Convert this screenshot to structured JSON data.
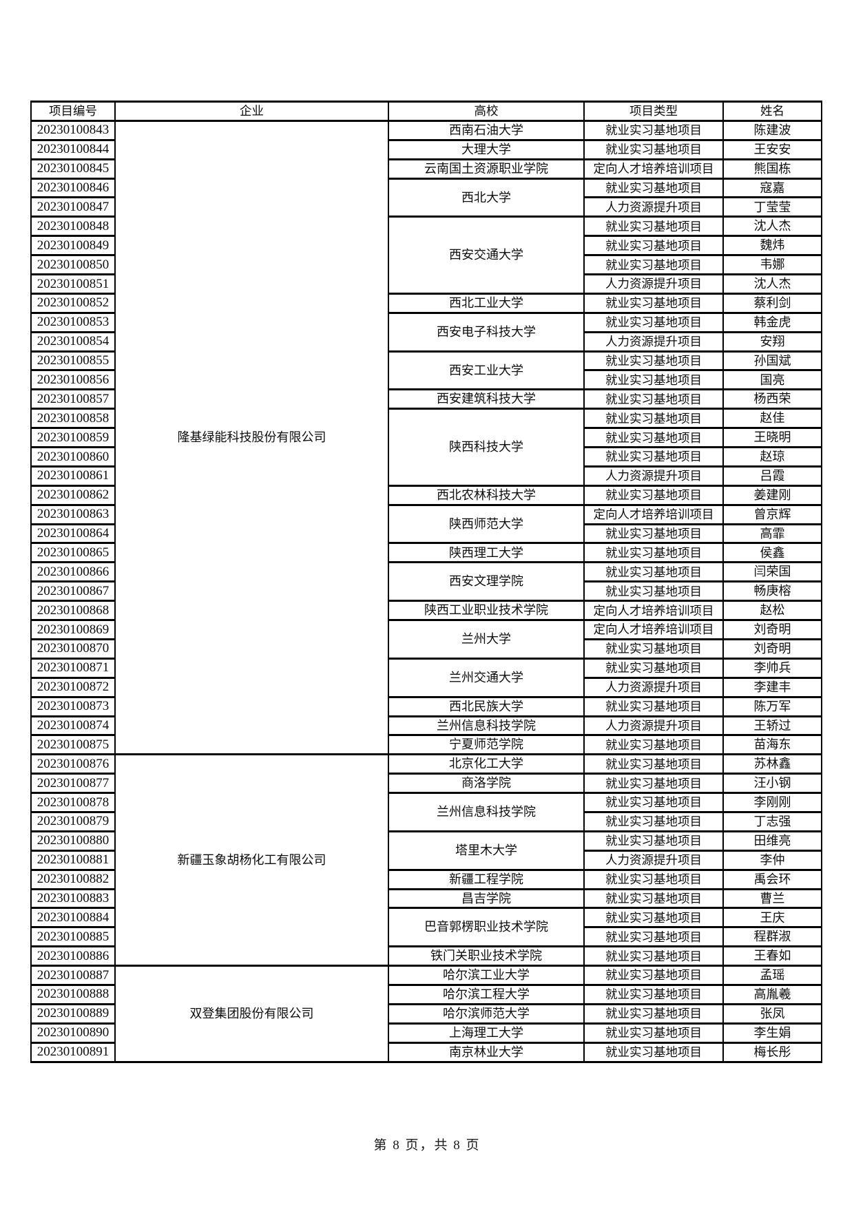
{
  "footer": {
    "text": "第 8 页，共 8 页"
  },
  "table": {
    "headers": [
      "项目编号",
      "企业",
      "高校",
      "项目类型",
      "姓名"
    ],
    "companies": [
      {
        "name": "隆基绿能科技股份有限公司",
        "groups": [
          {
            "university": "西南石油大学",
            "entries": [
              {
                "id": "20230100843",
                "type": "就业实习基地项目",
                "person": "陈建波"
              }
            ]
          },
          {
            "university": "大理大学",
            "entries": [
              {
                "id": "20230100844",
                "type": "就业实习基地项目",
                "person": "王安安"
              }
            ]
          },
          {
            "university": "云南国土资源职业学院",
            "entries": [
              {
                "id": "20230100845",
                "type": "定向人才培养培训项目",
                "person": "熊国栋"
              }
            ]
          },
          {
            "university": "西北大学",
            "entries": [
              {
                "id": "20230100846",
                "type": "就业实习基地项目",
                "person": "寇嘉"
              },
              {
                "id": "20230100847",
                "type": "人力资源提升项目",
                "person": "丁莹莹"
              }
            ]
          },
          {
            "university": "西安交通大学",
            "entries": [
              {
                "id": "20230100848",
                "type": "就业实习基地项目",
                "person": "沈人杰"
              },
              {
                "id": "20230100849",
                "type": "就业实习基地项目",
                "person": "魏炜"
              },
              {
                "id": "20230100850",
                "type": "就业实习基地项目",
                "person": "韦娜"
              },
              {
                "id": "20230100851",
                "type": "人力资源提升项目",
                "person": "沈人杰"
              }
            ]
          },
          {
            "university": "西北工业大学",
            "entries": [
              {
                "id": "20230100852",
                "type": "就业实习基地项目",
                "person": "蔡利剑"
              }
            ]
          },
          {
            "university": "西安电子科技大学",
            "entries": [
              {
                "id": "20230100853",
                "type": "就业实习基地项目",
                "person": "韩金虎"
              },
              {
                "id": "20230100854",
                "type": "人力资源提升项目",
                "person": "安翔"
              }
            ]
          },
          {
            "university": "西安工业大学",
            "entries": [
              {
                "id": "20230100855",
                "type": "就业实习基地项目",
                "person": "孙国斌"
              },
              {
                "id": "20230100856",
                "type": "就业实习基地项目",
                "person": "国亮"
              }
            ]
          },
          {
            "university": "西安建筑科技大学",
            "entries": [
              {
                "id": "20230100857",
                "type": "就业实习基地项目",
                "person": "杨西荣"
              }
            ]
          },
          {
            "university": "陕西科技大学",
            "entries": [
              {
                "id": "20230100858",
                "type": "就业实习基地项目",
                "person": "赵佳"
              },
              {
                "id": "20230100859",
                "type": "就业实习基地项目",
                "person": "王晓明"
              },
              {
                "id": "20230100860",
                "type": "就业实习基地项目",
                "person": "赵琼"
              },
              {
                "id": "20230100861",
                "type": "人力资源提升项目",
                "person": "吕霞"
              }
            ]
          },
          {
            "university": "西北农林科技大学",
            "entries": [
              {
                "id": "20230100862",
                "type": "就业实习基地项目",
                "person": "姜建刚"
              }
            ]
          },
          {
            "university": "陕西师范大学",
            "entries": [
              {
                "id": "20230100863",
                "type": "定向人才培养培训项目",
                "person": "曾京辉"
              },
              {
                "id": "20230100864",
                "type": "就业实习基地项目",
                "person": "高霏"
              }
            ]
          },
          {
            "university": "陕西理工大学",
            "entries": [
              {
                "id": "20230100865",
                "type": "就业实习基地项目",
                "person": "侯鑫"
              }
            ]
          },
          {
            "university": "西安文理学院",
            "entries": [
              {
                "id": "20230100866",
                "type": "就业实习基地项目",
                "person": "闫荣国"
              },
              {
                "id": "20230100867",
                "type": "就业实习基地项目",
                "person": "畅庚榕"
              }
            ]
          },
          {
            "university": "陕西工业职业技术学院",
            "entries": [
              {
                "id": "20230100868",
                "type": "定向人才培养培训项目",
                "person": "赵松"
              }
            ]
          },
          {
            "university": "兰州大学",
            "entries": [
              {
                "id": "20230100869",
                "type": "定向人才培养培训项目",
                "person": "刘奇明"
              },
              {
                "id": "20230100870",
                "type": "就业实习基地项目",
                "person": "刘奇明"
              }
            ]
          },
          {
            "university": "兰州交通大学",
            "entries": [
              {
                "id": "20230100871",
                "type": "就业实习基地项目",
                "person": "李帅兵"
              },
              {
                "id": "20230100872",
                "type": "人力资源提升项目",
                "person": "李建丰"
              }
            ]
          },
          {
            "university": "西北民族大学",
            "entries": [
              {
                "id": "20230100873",
                "type": "就业实习基地项目",
                "person": "陈万军"
              }
            ]
          },
          {
            "university": "兰州信息科技学院",
            "entries": [
              {
                "id": "20230100874",
                "type": "人力资源提升项目",
                "person": "王轿过"
              }
            ]
          },
          {
            "university": "宁夏师范学院",
            "entries": [
              {
                "id": "20230100875",
                "type": "就业实习基地项目",
                "person": "苗海东"
              }
            ]
          }
        ]
      },
      {
        "name": "新疆玉象胡杨化工有限公司",
        "groups": [
          {
            "university": "北京化工大学",
            "entries": [
              {
                "id": "20230100876",
                "type": "就业实习基地项目",
                "person": "苏林鑫"
              }
            ]
          },
          {
            "university": "商洛学院",
            "entries": [
              {
                "id": "20230100877",
                "type": "就业实习基地项目",
                "person": "汪小钢"
              }
            ]
          },
          {
            "university": "兰州信息科技学院",
            "entries": [
              {
                "id": "20230100878",
                "type": "就业实习基地项目",
                "person": "李刚刚"
              },
              {
                "id": "20230100879",
                "type": "就业实习基地项目",
                "person": "丁志强"
              }
            ]
          },
          {
            "university": "塔里木大学",
            "entries": [
              {
                "id": "20230100880",
                "type": "就业实习基地项目",
                "person": "田维亮"
              },
              {
                "id": "20230100881",
                "type": "人力资源提升项目",
                "person": "李仲"
              }
            ]
          },
          {
            "university": "新疆工程学院",
            "entries": [
              {
                "id": "20230100882",
                "type": "就业实习基地项目",
                "person": "禹会环"
              }
            ]
          },
          {
            "university": "昌吉学院",
            "entries": [
              {
                "id": "20230100883",
                "type": "就业实习基地项目",
                "person": "曹兰"
              }
            ]
          },
          {
            "university": "巴音郭楞职业技术学院",
            "entries": [
              {
                "id": "20230100884",
                "type": "就业实习基地项目",
                "person": "王庆"
              },
              {
                "id": "20230100885",
                "type": "就业实习基地项目",
                "person": "程群淑"
              }
            ]
          },
          {
            "university": "铁门关职业技术学院",
            "entries": [
              {
                "id": "20230100886",
                "type": "就业实习基地项目",
                "person": "王春如"
              }
            ]
          }
        ]
      },
      {
        "name": "双登集团股份有限公司",
        "groups": [
          {
            "university": "哈尔滨工业大学",
            "entries": [
              {
                "id": "20230100887",
                "type": "就业实习基地项目",
                "person": "孟瑶"
              }
            ]
          },
          {
            "university": "哈尔滨工程大学",
            "entries": [
              {
                "id": "20230100888",
                "type": "就业实习基地项目",
                "person": "高胤羲"
              }
            ]
          },
          {
            "university": "哈尔滨师范大学",
            "entries": [
              {
                "id": "20230100889",
                "type": "就业实习基地项目",
                "person": "张凤"
              }
            ]
          },
          {
            "university": "上海理工大学",
            "entries": [
              {
                "id": "20230100890",
                "type": "就业实习基地项目",
                "person": "李生娟"
              }
            ]
          },
          {
            "university": "南京林业大学",
            "entries": [
              {
                "id": "20230100891",
                "type": "就业实习基地项目",
                "person": "梅长彤"
              }
            ]
          }
        ]
      }
    ]
  }
}
